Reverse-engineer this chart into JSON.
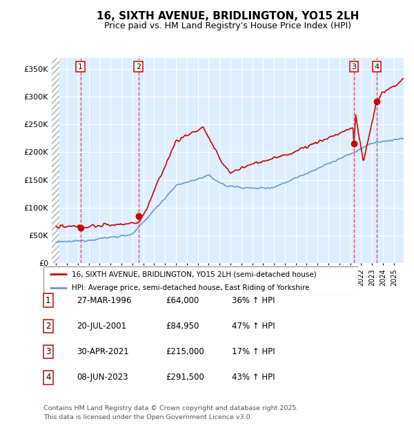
{
  "title": "16, SIXTH AVENUE, BRIDLINGTON, YO15 2LH",
  "subtitle": "Price paid vs. HM Land Registry's House Price Index (HPI)",
  "ylabel_ticks": [
    "£0",
    "£50K",
    "£100K",
    "£150K",
    "£200K",
    "£250K",
    "£300K",
    "£350K"
  ],
  "ytick_values": [
    0,
    50000,
    100000,
    150000,
    200000,
    250000,
    300000,
    350000
  ],
  "ylim": [
    0,
    370000
  ],
  "xlim_start": 1993.6,
  "xlim_end": 2025.9,
  "sale_dates_num": [
    1996.23,
    2001.55,
    2021.33,
    2023.44
  ],
  "sale_prices": [
    64000,
    84950,
    215000,
    291500
  ],
  "sale_labels": [
    "1",
    "2",
    "3",
    "4"
  ],
  "legend_line1": "16, SIXTH AVENUE, BRIDLINGTON, YO15 2LH (semi-detached house)",
  "legend_line2": "HPI: Average price, semi-detached house, East Riding of Yorkshire",
  "table_data": [
    [
      "1",
      "27-MAR-1996",
      "£64,000",
      "36% ↑ HPI"
    ],
    [
      "2",
      "20-JUL-2001",
      "£84,950",
      "47% ↑ HPI"
    ],
    [
      "3",
      "30-APR-2021",
      "£215,000",
      "17% ↑ HPI"
    ],
    [
      "4",
      "08-JUN-2023",
      "£291,500",
      "43% ↑ HPI"
    ]
  ],
  "footer": "Contains HM Land Registry data © Crown copyright and database right 2025.\nThis data is licensed under the Open Government Licence v3.0.",
  "property_color": "#cc0000",
  "hpi_line_color": "#6699cc",
  "vline_color": "#ee3333",
  "bg_color": "#ddeeff",
  "grid_color": "#ffffff",
  "hatch_color": "#bbbbbb"
}
